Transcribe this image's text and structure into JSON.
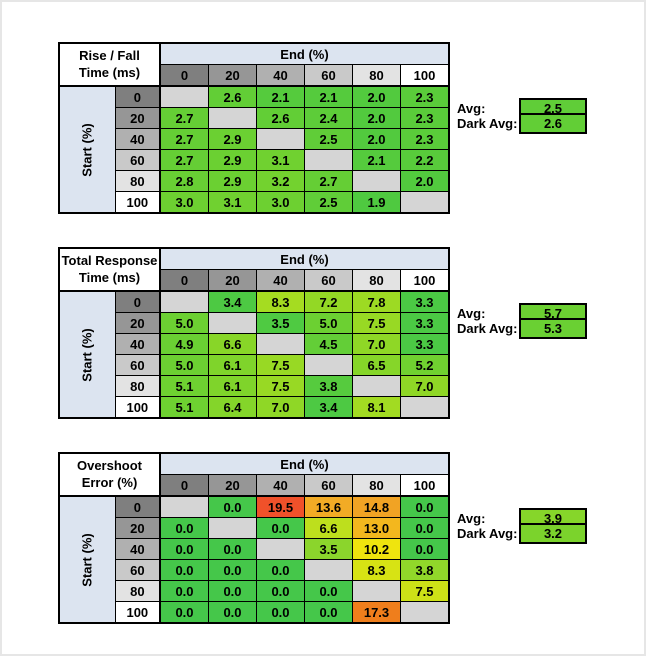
{
  "style": {
    "header_grays": [
      "#7F7F7F",
      "#969696",
      "#B0B0B0",
      "#C9C9C9",
      "#E3E3E3",
      "#FFFFFF"
    ],
    "axis_fill": "#DCE4F0",
    "blank_cell": "#D5D5D5",
    "grid_border": "#000000",
    "frame": "#E6E6E6",
    "background": "#FFFFFF"
  },
  "chart_data": [
    {
      "type": "heatmap",
      "title_line1": "Rise / Fall",
      "title_line2": "Time (ms)",
      "col_axis_label": "End (%)",
      "row_axis_label": "Start (%)",
      "col_headers": [
        "0",
        "20",
        "40",
        "60",
        "80",
        "100"
      ],
      "row_headers": [
        "0",
        "20",
        "40",
        "60",
        "80",
        "100"
      ],
      "values": [
        [
          "",
          "2.6",
          "2.1",
          "2.1",
          "2.0",
          "2.3"
        ],
        [
          "2.7",
          "",
          "2.6",
          "2.4",
          "2.0",
          "2.3"
        ],
        [
          "2.7",
          "2.9",
          "",
          "2.5",
          "2.0",
          "2.3"
        ],
        [
          "2.7",
          "2.9",
          "3.1",
          "",
          "2.1",
          "2.2"
        ],
        [
          "2.8",
          "2.9",
          "3.2",
          "2.7",
          "",
          "2.0"
        ],
        [
          "3.0",
          "3.1",
          "3.0",
          "2.5",
          "1.9",
          ""
        ]
      ],
      "colors": [
        [
          null,
          "#62CE36",
          "#55CB3D",
          "#55CB3D",
          "#52CA3E",
          "#5ACC3A"
        ],
        [
          "#65CE35",
          null,
          "#62CE36",
          "#5DCC39",
          "#52CA3E",
          "#5ACC3A"
        ],
        [
          "#65CE35",
          "#6BD032",
          null,
          "#60CD38",
          "#52CA3E",
          "#5ACC3A"
        ],
        [
          "#65CE35",
          "#6BD032",
          "#70D130",
          null,
          "#55CB3D",
          "#58CB3B"
        ],
        [
          "#68CF34",
          "#6BD032",
          "#73D22F",
          "#65CE35",
          null,
          "#52CA3E"
        ],
        [
          "#6DD031",
          "#70D130",
          "#6DD031",
          "#60CD38",
          "#4FC940",
          null
        ]
      ],
      "avg_label": "Avg:",
      "avg_value": "2.5",
      "avg_color": "#60CD38",
      "dark_avg_label": "Dark Avg:",
      "dark_avg_value": "2.6",
      "dark_avg_color": "#62CE36"
    },
    {
      "type": "heatmap",
      "title_line1": "Total Response",
      "title_line2": "Time (ms)",
      "col_axis_label": "End (%)",
      "row_axis_label": "Start (%)",
      "col_headers": [
        "0",
        "20",
        "40",
        "60",
        "80",
        "100"
      ],
      "row_headers": [
        "0",
        "20",
        "40",
        "60",
        "80",
        "100"
      ],
      "values": [
        [
          "",
          "3.4",
          "8.3",
          "7.2",
          "7.8",
          "3.3"
        ],
        [
          "5.0",
          "",
          "3.5",
          "5.0",
          "7.5",
          "3.3"
        ],
        [
          "4.9",
          "6.6",
          "",
          "4.5",
          "7.0",
          "3.3"
        ],
        [
          "5.0",
          "6.1",
          "7.5",
          "",
          "6.5",
          "5.2"
        ],
        [
          "5.1",
          "6.1",
          "7.5",
          "3.8",
          "",
          "7.0"
        ],
        [
          "5.1",
          "6.4",
          "7.0",
          "3.4",
          "8.1",
          ""
        ]
      ],
      "colors": [
        [
          null,
          "#4DC943",
          "#A5DC21",
          "#93D825",
          "#9DDA23",
          "#4BC944"
        ],
        [
          "#6CD032",
          null,
          "#4FCA42",
          "#6CD032",
          "#98D924",
          "#4BC944"
        ],
        [
          "#6AD033",
          "#88D628",
          null,
          "#63CE37",
          "#8FD726",
          "#4BC944"
        ],
        [
          "#6CD032",
          "#7FD42B",
          "#98D924",
          null,
          "#86D629",
          "#70D130"
        ],
        [
          "#6ED131",
          "#7FD42B",
          "#98D924",
          "#56CB3E",
          null,
          "#8FD726"
        ],
        [
          "#6ED131",
          "#84D52A",
          "#8FD726",
          "#4DC943",
          "#A2DB22",
          null
        ]
      ],
      "avg_label": "Avg:",
      "avg_value": "5.7",
      "avg_color": "#6CD032",
      "dark_avg_label": "Dark Avg:",
      "dark_avg_value": "5.3",
      "dark_avg_color": "#6AD033"
    },
    {
      "type": "heatmap",
      "title_line1": "Overshoot",
      "title_line2": "Error (%)",
      "col_axis_label": "End (%)",
      "row_axis_label": "Start (%)",
      "col_headers": [
        "0",
        "20",
        "40",
        "60",
        "80",
        "100"
      ],
      "row_headers": [
        "0",
        "20",
        "40",
        "60",
        "80",
        "100"
      ],
      "values": [
        [
          "",
          "0.0",
          "19.5",
          "13.6",
          "14.8",
          "0.0"
        ],
        [
          "0.0",
          "",
          "0.0",
          "6.6",
          "13.0",
          "0.0"
        ],
        [
          "0.0",
          "0.0",
          "",
          "3.5",
          "10.2",
          "0.0"
        ],
        [
          "0.0",
          "0.0",
          "0.0",
          "",
          "8.3",
          "3.8"
        ],
        [
          "0.0",
          "0.0",
          "0.0",
          "0.0",
          "",
          "7.5"
        ],
        [
          "0.0",
          "0.0",
          "0.0",
          "0.0",
          "17.3",
          ""
        ]
      ],
      "colors": [
        [
          null,
          "#45C74A",
          "#F0512A",
          "#F2AB25",
          "#F1A324",
          "#45C74A"
        ],
        [
          "#45C74A",
          null,
          "#45C74A",
          "#BDDF1D",
          "#F3B71E",
          "#45C74A"
        ],
        [
          "#45C74A",
          "#45C74A",
          null,
          "#8BD52C",
          "#EFE40E",
          "#45C74A"
        ],
        [
          "#45C74A",
          "#45C74A",
          "#45C74A",
          null,
          "#D7E314",
          "#91D72A"
        ],
        [
          "#45C74A",
          "#45C74A",
          "#45C74A",
          "#45C74A",
          null,
          "#CDE117"
        ],
        [
          "#45C74A",
          "#45C74A",
          "#45C74A",
          "#45C74A",
          "#EF7E1C",
          null
        ]
      ],
      "avg_label": "Avg:",
      "avg_value": "3.9",
      "avg_color": "#86D62A",
      "dark_avg_label": "Dark Avg:",
      "dark_avg_value": "3.2",
      "dark_avg_color": "#7BD32C"
    }
  ]
}
